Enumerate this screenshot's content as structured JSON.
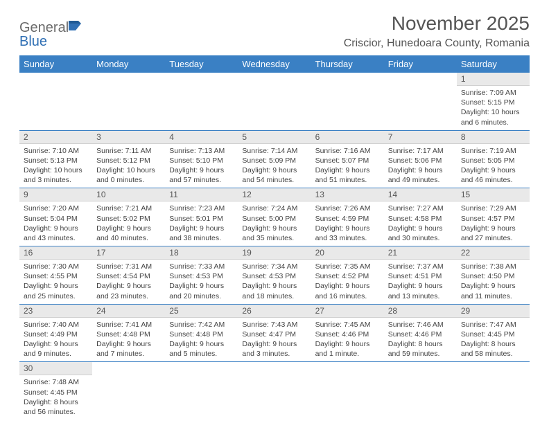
{
  "brand": {
    "name_gray": "General",
    "name_blue": "Blue"
  },
  "title": "November 2025",
  "location": "Criscior, Hunedoara County, Romania",
  "colors": {
    "header_bg": "#3a80c4",
    "header_text": "#ffffff",
    "daynum_bg": "#e9e9e9",
    "divider": "#3a80c4",
    "text": "#444444",
    "title_text": "#555555"
  },
  "weekdays": [
    "Sunday",
    "Monday",
    "Tuesday",
    "Wednesday",
    "Thursday",
    "Friday",
    "Saturday"
  ],
  "weeks": [
    [
      {
        "empty": true
      },
      {
        "empty": true
      },
      {
        "empty": true
      },
      {
        "empty": true
      },
      {
        "empty": true
      },
      {
        "empty": true
      },
      {
        "n": "1",
        "sr": "Sunrise: 7:09 AM",
        "ss": "Sunset: 5:15 PM",
        "dl1": "Daylight: 10 hours",
        "dl2": "and 6 minutes."
      }
    ],
    [
      {
        "n": "2",
        "sr": "Sunrise: 7:10 AM",
        "ss": "Sunset: 5:13 PM",
        "dl1": "Daylight: 10 hours",
        "dl2": "and 3 minutes."
      },
      {
        "n": "3",
        "sr": "Sunrise: 7:11 AM",
        "ss": "Sunset: 5:12 PM",
        "dl1": "Daylight: 10 hours",
        "dl2": "and 0 minutes."
      },
      {
        "n": "4",
        "sr": "Sunrise: 7:13 AM",
        "ss": "Sunset: 5:10 PM",
        "dl1": "Daylight: 9 hours",
        "dl2": "and 57 minutes."
      },
      {
        "n": "5",
        "sr": "Sunrise: 7:14 AM",
        "ss": "Sunset: 5:09 PM",
        "dl1": "Daylight: 9 hours",
        "dl2": "and 54 minutes."
      },
      {
        "n": "6",
        "sr": "Sunrise: 7:16 AM",
        "ss": "Sunset: 5:07 PM",
        "dl1": "Daylight: 9 hours",
        "dl2": "and 51 minutes."
      },
      {
        "n": "7",
        "sr": "Sunrise: 7:17 AM",
        "ss": "Sunset: 5:06 PM",
        "dl1": "Daylight: 9 hours",
        "dl2": "and 49 minutes."
      },
      {
        "n": "8",
        "sr": "Sunrise: 7:19 AM",
        "ss": "Sunset: 5:05 PM",
        "dl1": "Daylight: 9 hours",
        "dl2": "and 46 minutes."
      }
    ],
    [
      {
        "n": "9",
        "sr": "Sunrise: 7:20 AM",
        "ss": "Sunset: 5:04 PM",
        "dl1": "Daylight: 9 hours",
        "dl2": "and 43 minutes."
      },
      {
        "n": "10",
        "sr": "Sunrise: 7:21 AM",
        "ss": "Sunset: 5:02 PM",
        "dl1": "Daylight: 9 hours",
        "dl2": "and 40 minutes."
      },
      {
        "n": "11",
        "sr": "Sunrise: 7:23 AM",
        "ss": "Sunset: 5:01 PM",
        "dl1": "Daylight: 9 hours",
        "dl2": "and 38 minutes."
      },
      {
        "n": "12",
        "sr": "Sunrise: 7:24 AM",
        "ss": "Sunset: 5:00 PM",
        "dl1": "Daylight: 9 hours",
        "dl2": "and 35 minutes."
      },
      {
        "n": "13",
        "sr": "Sunrise: 7:26 AM",
        "ss": "Sunset: 4:59 PM",
        "dl1": "Daylight: 9 hours",
        "dl2": "and 33 minutes."
      },
      {
        "n": "14",
        "sr": "Sunrise: 7:27 AM",
        "ss": "Sunset: 4:58 PM",
        "dl1": "Daylight: 9 hours",
        "dl2": "and 30 minutes."
      },
      {
        "n": "15",
        "sr": "Sunrise: 7:29 AM",
        "ss": "Sunset: 4:57 PM",
        "dl1": "Daylight: 9 hours",
        "dl2": "and 27 minutes."
      }
    ],
    [
      {
        "n": "16",
        "sr": "Sunrise: 7:30 AM",
        "ss": "Sunset: 4:55 PM",
        "dl1": "Daylight: 9 hours",
        "dl2": "and 25 minutes."
      },
      {
        "n": "17",
        "sr": "Sunrise: 7:31 AM",
        "ss": "Sunset: 4:54 PM",
        "dl1": "Daylight: 9 hours",
        "dl2": "and 23 minutes."
      },
      {
        "n": "18",
        "sr": "Sunrise: 7:33 AM",
        "ss": "Sunset: 4:53 PM",
        "dl1": "Daylight: 9 hours",
        "dl2": "and 20 minutes."
      },
      {
        "n": "19",
        "sr": "Sunrise: 7:34 AM",
        "ss": "Sunset: 4:53 PM",
        "dl1": "Daylight: 9 hours",
        "dl2": "and 18 minutes."
      },
      {
        "n": "20",
        "sr": "Sunrise: 7:35 AM",
        "ss": "Sunset: 4:52 PM",
        "dl1": "Daylight: 9 hours",
        "dl2": "and 16 minutes."
      },
      {
        "n": "21",
        "sr": "Sunrise: 7:37 AM",
        "ss": "Sunset: 4:51 PM",
        "dl1": "Daylight: 9 hours",
        "dl2": "and 13 minutes."
      },
      {
        "n": "22",
        "sr": "Sunrise: 7:38 AM",
        "ss": "Sunset: 4:50 PM",
        "dl1": "Daylight: 9 hours",
        "dl2": "and 11 minutes."
      }
    ],
    [
      {
        "n": "23",
        "sr": "Sunrise: 7:40 AM",
        "ss": "Sunset: 4:49 PM",
        "dl1": "Daylight: 9 hours",
        "dl2": "and 9 minutes."
      },
      {
        "n": "24",
        "sr": "Sunrise: 7:41 AM",
        "ss": "Sunset: 4:48 PM",
        "dl1": "Daylight: 9 hours",
        "dl2": "and 7 minutes."
      },
      {
        "n": "25",
        "sr": "Sunrise: 7:42 AM",
        "ss": "Sunset: 4:48 PM",
        "dl1": "Daylight: 9 hours",
        "dl2": "and 5 minutes."
      },
      {
        "n": "26",
        "sr": "Sunrise: 7:43 AM",
        "ss": "Sunset: 4:47 PM",
        "dl1": "Daylight: 9 hours",
        "dl2": "and 3 minutes."
      },
      {
        "n": "27",
        "sr": "Sunrise: 7:45 AM",
        "ss": "Sunset: 4:46 PM",
        "dl1": "Daylight: 9 hours",
        "dl2": "and 1 minute."
      },
      {
        "n": "28",
        "sr": "Sunrise: 7:46 AM",
        "ss": "Sunset: 4:46 PM",
        "dl1": "Daylight: 8 hours",
        "dl2": "and 59 minutes."
      },
      {
        "n": "29",
        "sr": "Sunrise: 7:47 AM",
        "ss": "Sunset: 4:45 PM",
        "dl1": "Daylight: 8 hours",
        "dl2": "and 58 minutes."
      }
    ],
    [
      {
        "n": "30",
        "sr": "Sunrise: 7:48 AM",
        "ss": "Sunset: 4:45 PM",
        "dl1": "Daylight: 8 hours",
        "dl2": "and 56 minutes."
      },
      {
        "empty": true
      },
      {
        "empty": true
      },
      {
        "empty": true
      },
      {
        "empty": true
      },
      {
        "empty": true
      },
      {
        "empty": true
      }
    ]
  ]
}
